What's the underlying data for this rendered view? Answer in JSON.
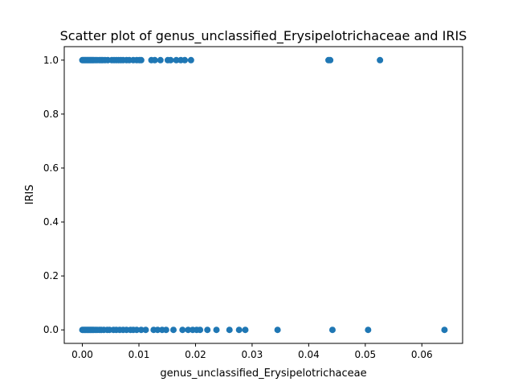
{
  "chart_data": {
    "type": "scatter",
    "title": "Scatter plot of genus_unclassified_Erysipelotrichaceae and IRIS",
    "xlabel": "genus_unclassified_Erysipelotrichaceae",
    "ylabel": "IRIS",
    "xlim": [
      -0.0032,
      0.0672
    ],
    "ylim": [
      -0.05,
      1.05
    ],
    "x_ticks": [
      "0.00",
      "0.01",
      "0.02",
      "0.03",
      "0.04",
      "0.05",
      "0.06"
    ],
    "y_ticks": [
      "0.0",
      "0.2",
      "0.4",
      "0.6",
      "0.8",
      "1.0"
    ],
    "grid": false,
    "legend": "none",
    "marker_color": "#1f77b4",
    "series": [
      {
        "x": [
          0.0,
          0.0002,
          0.0004,
          0.0006,
          0.0008,
          0.001,
          0.0012,
          0.0014,
          0.0016,
          0.0018,
          0.002,
          0.0023,
          0.0026,
          0.003,
          0.0033,
          0.0036,
          0.004,
          0.0045,
          0.0052,
          0.0056,
          0.006,
          0.0064,
          0.0068,
          0.0072,
          0.0078,
          0.0083,
          0.009,
          0.0096,
          0.0101,
          0.0104,
          0.0122,
          0.0128,
          0.0138,
          0.0151,
          0.0156,
          0.0166,
          0.0174,
          0.0181,
          0.0192,
          0.0435,
          0.0438,
          0.0526
        ],
        "y": [
          1,
          1,
          1,
          1,
          1,
          1,
          1,
          1,
          1,
          1,
          1,
          1,
          1,
          1,
          1,
          1,
          1,
          1,
          1,
          1,
          1,
          1,
          1,
          1,
          1,
          1,
          1,
          1,
          1,
          1,
          1,
          1,
          1,
          1,
          1,
          1,
          1,
          1,
          1,
          1,
          1,
          1
        ]
      },
      {
        "x": [
          0.0,
          0.0002,
          0.0004,
          0.0006,
          0.0008,
          0.001,
          0.0012,
          0.0014,
          0.0016,
          0.0018,
          0.002,
          0.0023,
          0.0026,
          0.003,
          0.0033,
          0.0038,
          0.0044,
          0.0048,
          0.0055,
          0.006,
          0.0066,
          0.0072,
          0.0078,
          0.0085,
          0.009,
          0.0096,
          0.0104,
          0.0112,
          0.0126,
          0.0133,
          0.0141,
          0.0148,
          0.0161,
          0.0177,
          0.0187,
          0.0195,
          0.0202,
          0.0208,
          0.0221,
          0.0237,
          0.026,
          0.0277,
          0.0288,
          0.0345,
          0.0442,
          0.0505,
          0.064
        ],
        "y": [
          0,
          0,
          0,
          0,
          0,
          0,
          0,
          0,
          0,
          0,
          0,
          0,
          0,
          0,
          0,
          0,
          0,
          0,
          0,
          0,
          0,
          0,
          0,
          0,
          0,
          0,
          0,
          0,
          0,
          0,
          0,
          0,
          0,
          0,
          0,
          0,
          0,
          0,
          0,
          0,
          0,
          0,
          0,
          0,
          0,
          0,
          0
        ]
      }
    ]
  }
}
